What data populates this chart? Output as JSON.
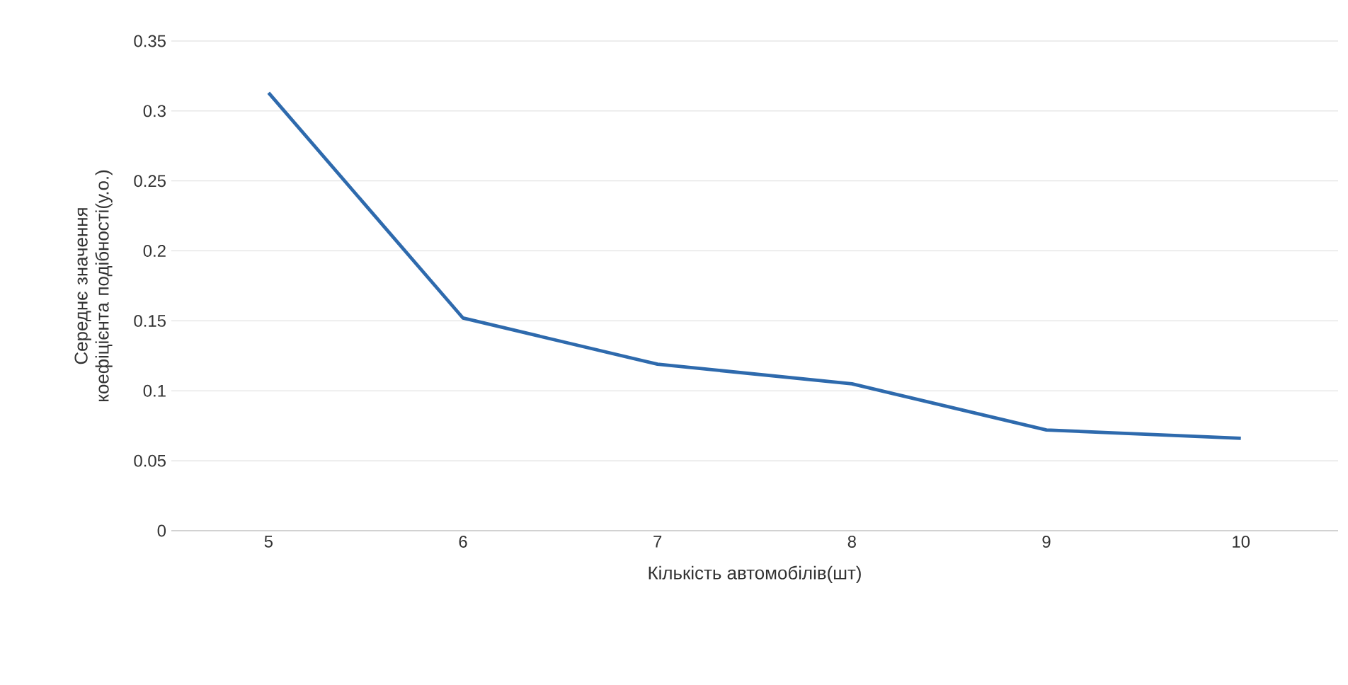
{
  "chart_data": {
    "type": "line",
    "xlabel": "Кількість автомобілів(шт)",
    "ylabel": "Середнє значення коефіцієнта подібності(у.о.)",
    "categories": [
      "5",
      "6",
      "7",
      "8",
      "9",
      "10"
    ],
    "values": [
      0.313,
      0.152,
      0.119,
      0.105,
      0.072,
      0.066
    ],
    "color": "#2e6aad",
    "ylim": [
      0,
      0.35
    ],
    "yticks": [
      0,
      0.05,
      0.1,
      0.15,
      0.2,
      0.25,
      0.3,
      0.35
    ],
    "grid": "y"
  }
}
